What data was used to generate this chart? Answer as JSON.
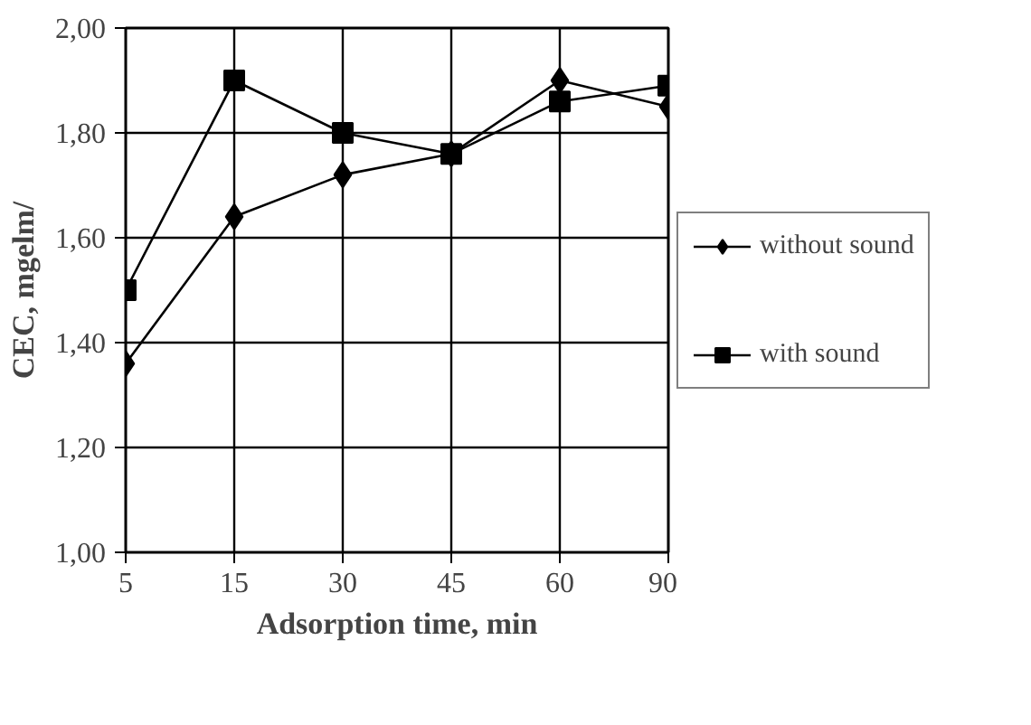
{
  "chart_data": {
    "type": "line",
    "xlabel": "Adsorption time, min",
    "ylabel": "CEC, mgelm/",
    "categories": [
      "5",
      "15",
      "30",
      "45",
      "60",
      "90"
    ],
    "series": [
      {
        "name": "without sound",
        "color": "#000000",
        "marker": "diamond",
        "values": [
          1.36,
          1.64,
          1.72,
          1.76,
          1.9,
          1.85
        ]
      },
      {
        "name": "with sound",
        "color": "#000000",
        "marker": "square",
        "values": [
          1.5,
          1.9,
          1.8,
          1.76,
          1.86,
          1.89
        ]
      }
    ],
    "ylim": [
      1.0,
      2.0
    ],
    "yticks": [
      {
        "value": 1.0,
        "label": "1,00"
      },
      {
        "value": 1.2,
        "label": "1,20"
      },
      {
        "value": 1.4,
        "label": "1,40"
      },
      {
        "value": 1.6,
        "label": "1,60"
      },
      {
        "value": 1.8,
        "label": "1,80"
      },
      {
        "value": 2.0,
        "label": "2,00"
      }
    ],
    "grid": true,
    "legend": "right",
    "line_style": "solid"
  }
}
